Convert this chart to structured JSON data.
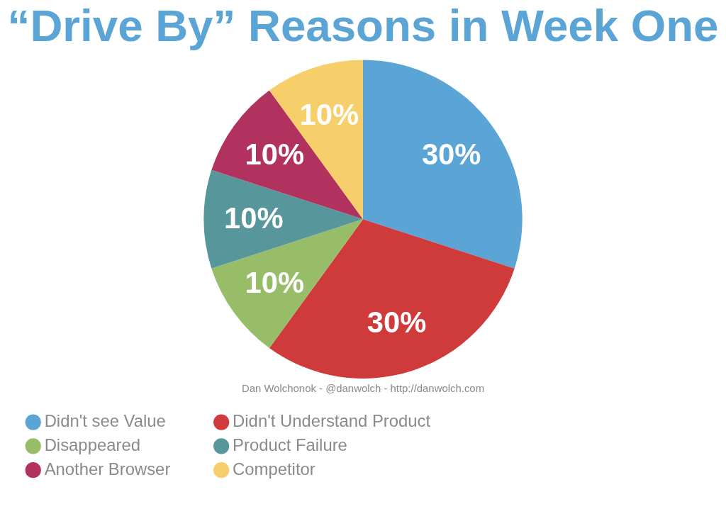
{
  "chart_data": {
    "type": "pie",
    "title": "“Drive By” Reasons in Week One",
    "categories": [
      "Didn't see Value",
      "Didn't Understand Product",
      "Disappeared",
      "Product Failure",
      "Another Browser",
      "Competitor"
    ],
    "values": [
      30,
      30,
      10,
      10,
      10,
      10
    ],
    "colors": [
      "#5ba4d6",
      "#cf3b3a",
      "#97bd69",
      "#57969a",
      "#b2325f",
      "#f6cf6b"
    ],
    "value_labels": [
      "30%",
      "30%",
      "10%",
      "10%",
      "10%",
      "10%"
    ],
    "legend": "bottom",
    "annotations": [
      "Dan Wolchonok - @danwolch - http://danwolch.com"
    ]
  }
}
